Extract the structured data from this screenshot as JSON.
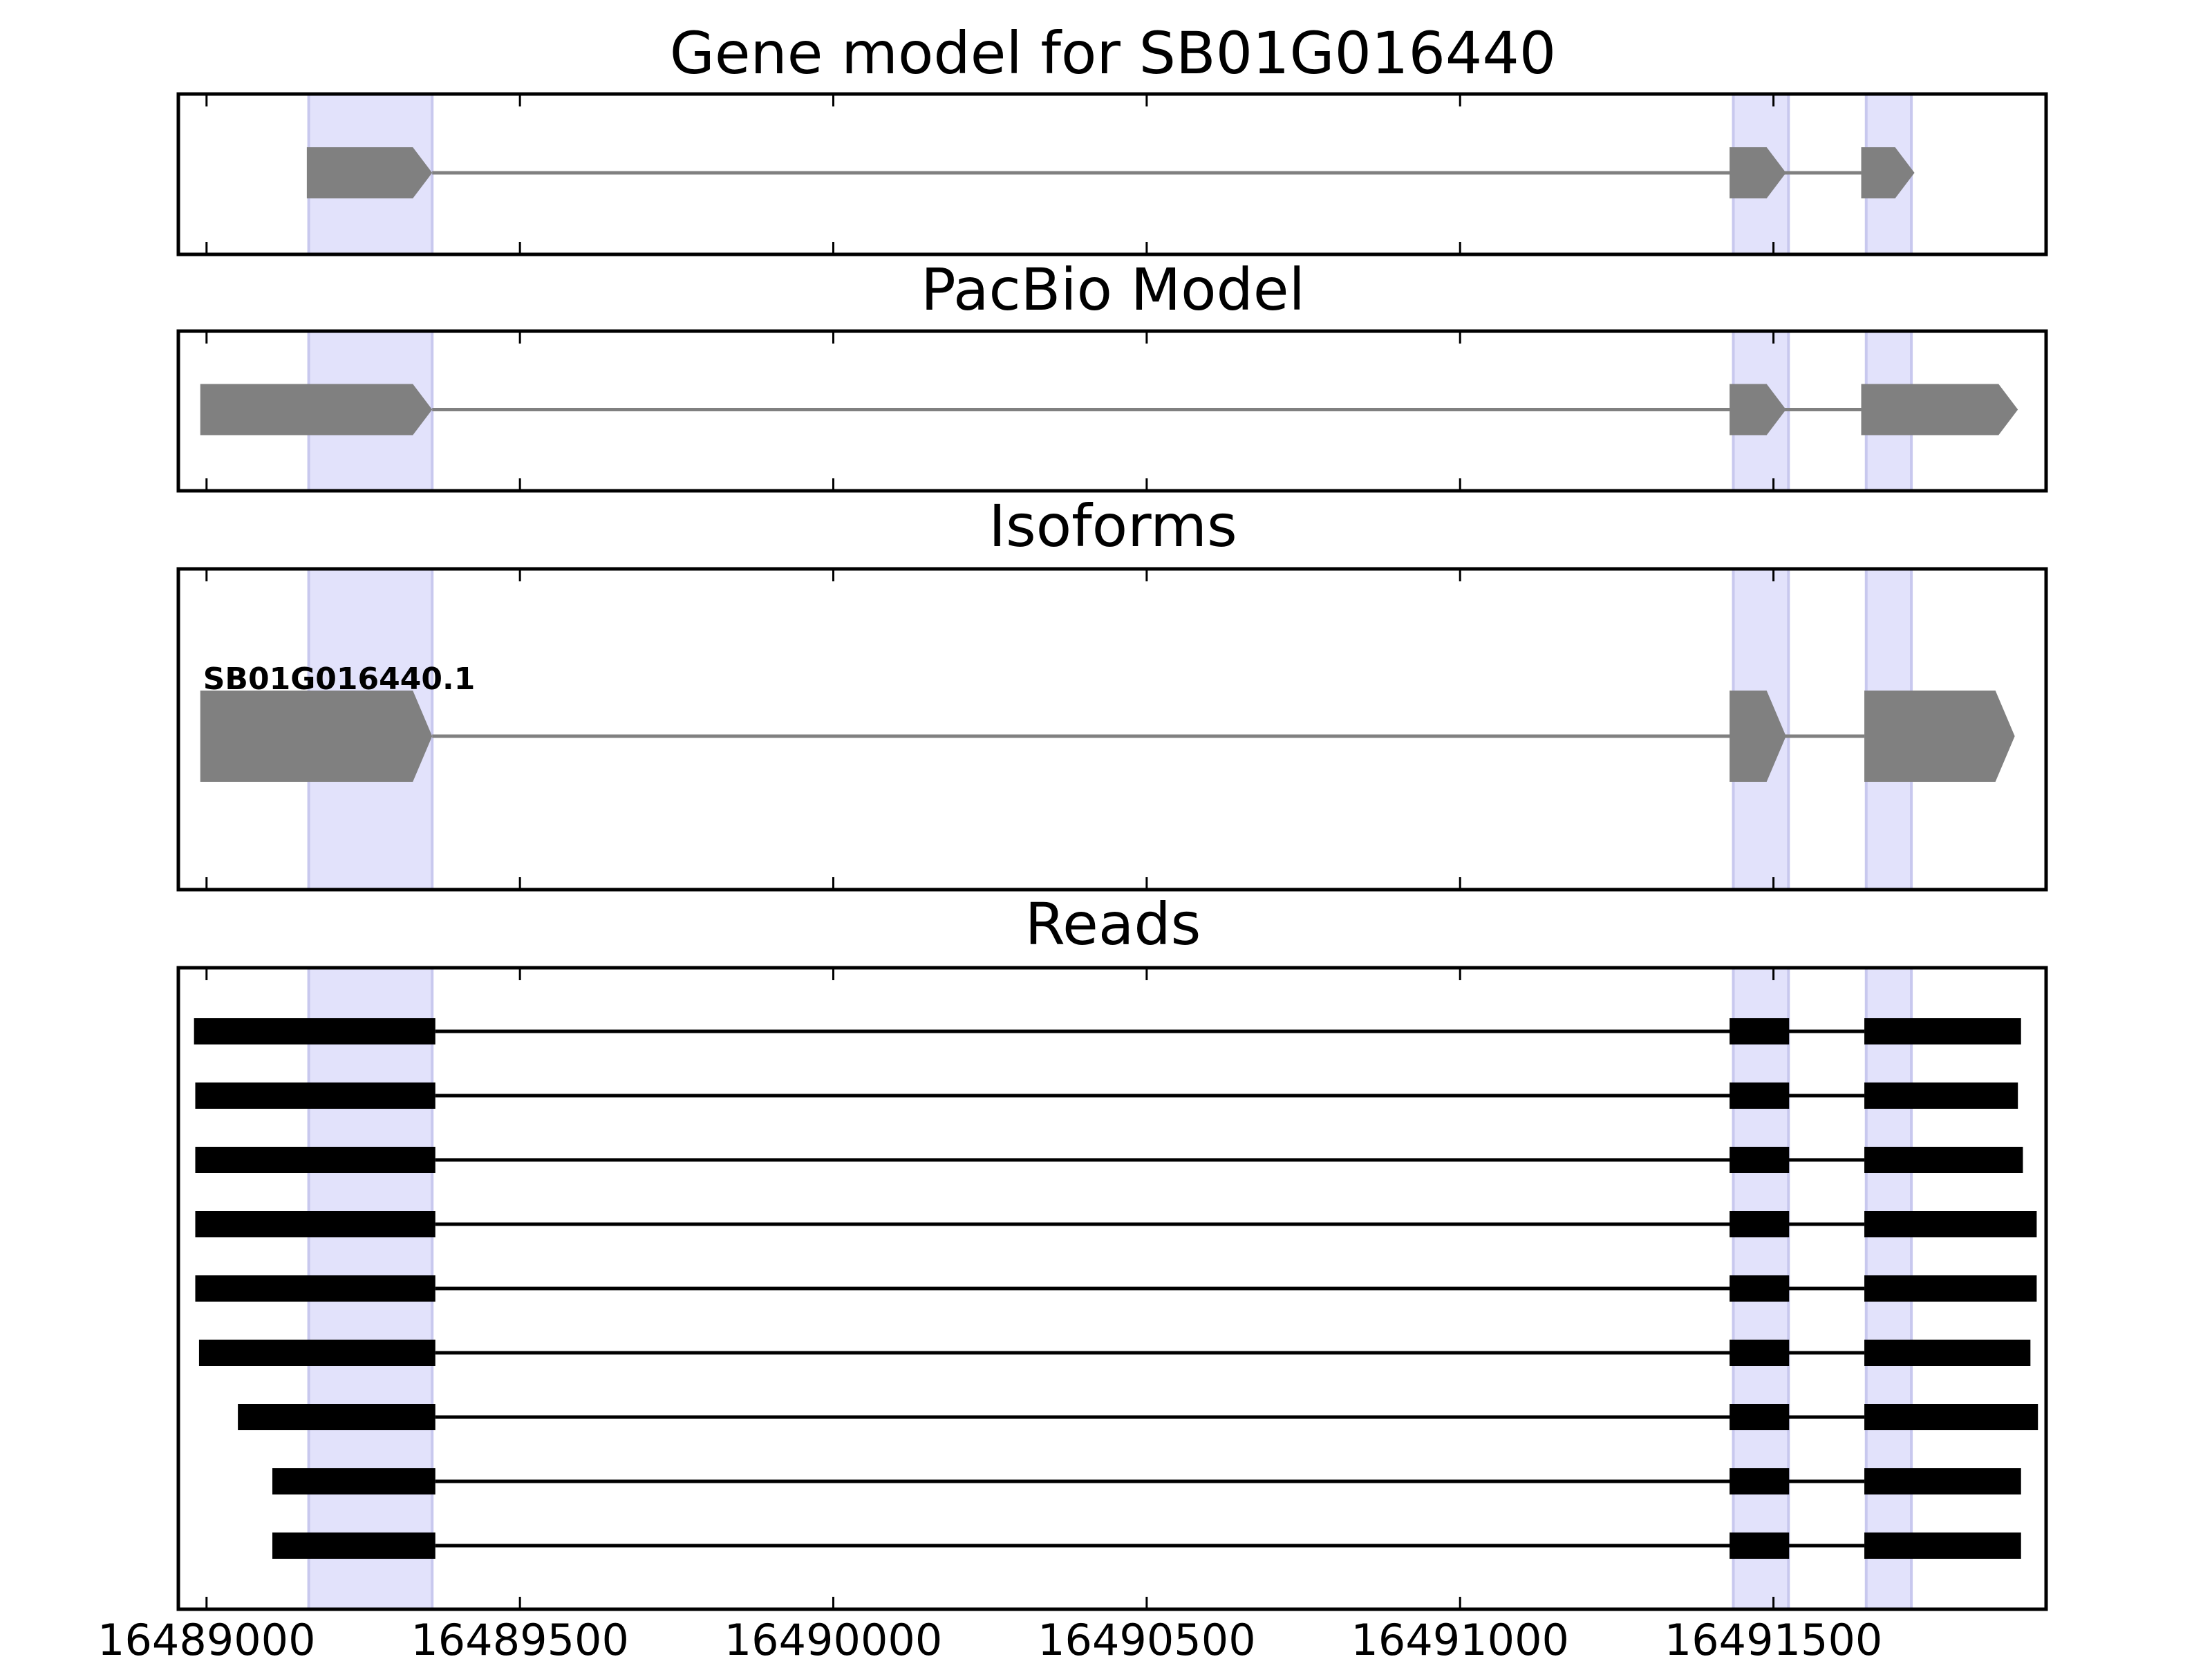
{
  "colors": {
    "highlight": "#e2e2fb",
    "highlight_edge": "#c8c8ee",
    "gene_shape": "#808080",
    "read": "#000000",
    "frame": "#000000"
  },
  "chart_data": [
    {
      "type": "gene-track",
      "title": "Gene model for SB01G016440",
      "strand": "+",
      "exons": [
        [
          16489160,
          16489360
        ],
        [
          16491430,
          16491520
        ],
        [
          16491640,
          16491725
        ]
      ]
    },
    {
      "type": "gene-track",
      "title": "PacBio Model",
      "strand": "+",
      "exons": [
        [
          16488990,
          16489360
        ],
        [
          16491430,
          16491520
        ],
        [
          16491640,
          16491890
        ]
      ]
    },
    {
      "type": "gene-track",
      "title": "Isoforms",
      "strand": "+",
      "isoforms": [
        {
          "name": "SB01G016440.1",
          "exons": [
            [
              16488990,
              16489360
            ],
            [
              16491430,
              16491520
            ],
            [
              16491645,
              16491885
            ]
          ]
        }
      ]
    },
    {
      "type": "reads-track",
      "title": "Reads",
      "reads": [
        [
          [
            16488980,
            16489365
          ],
          [
            16491430,
            16491525
          ],
          [
            16491645,
            16491895
          ]
        ],
        [
          [
            16488982,
            16489365
          ],
          [
            16491430,
            16491525
          ],
          [
            16491645,
            16491890
          ]
        ],
        [
          [
            16488982,
            16489365
          ],
          [
            16491430,
            16491525
          ],
          [
            16491645,
            16491898
          ]
        ],
        [
          [
            16488982,
            16489365
          ],
          [
            16491430,
            16491525
          ],
          [
            16491645,
            16491920
          ]
        ],
        [
          [
            16488982,
            16489365
          ],
          [
            16491430,
            16491525
          ],
          [
            16491645,
            16491920
          ]
        ],
        [
          [
            16488988,
            16489365
          ],
          [
            16491430,
            16491525
          ],
          [
            16491645,
            16491910
          ]
        ],
        [
          [
            16489050,
            16489365
          ],
          [
            16491430,
            16491525
          ],
          [
            16491645,
            16491922
          ]
        ],
        [
          [
            16489105,
            16489365
          ],
          [
            16491430,
            16491525
          ],
          [
            16491645,
            16491895
          ]
        ],
        [
          [
            16489105,
            16489365
          ],
          [
            16491430,
            16491525
          ],
          [
            16491645,
            16491895
          ]
        ]
      ]
    }
  ],
  "highlights": [
    [
      16489163,
      16489360
    ],
    [
      16491436,
      16491524
    ],
    [
      16491648,
      16491720
    ]
  ],
  "x_axis": {
    "xlim": [
      16488955,
      16491935
    ],
    "ticks": [
      16489000,
      16489500,
      16490000,
      16490500,
      16491000,
      16491500
    ],
    "tick_labels": [
      "16489000",
      "16489500",
      "16490000",
      "16490500",
      "16491000",
      "16491500"
    ]
  }
}
